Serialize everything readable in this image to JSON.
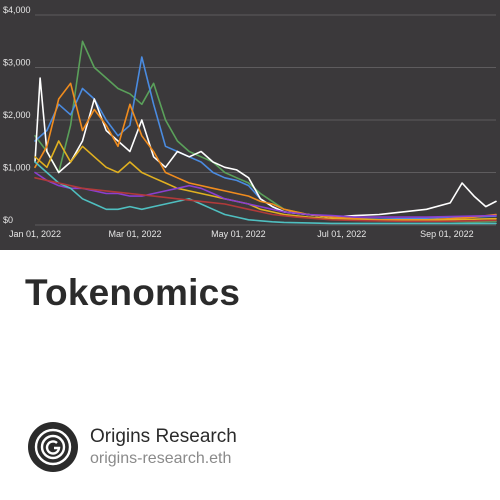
{
  "colors": {
    "chart_background": "#3b393b",
    "gridline": "#6b696b",
    "tick_text": "#e6e6e6",
    "title_text": "#2b2b2b",
    "handle_text": "#8a8a8a"
  },
  "post": {
    "title": "Tokenomics"
  },
  "author": {
    "name": "Origins Research",
    "handle": "origins-research.eth",
    "logo_icon": "origins-logo-icon"
  },
  "chart_data": {
    "type": "line",
    "title": "",
    "xlabel": "",
    "ylabel": "",
    "ylim": [
      0,
      4000
    ],
    "xlim": [
      "2022-01-01",
      "2022-09-30"
    ],
    "grid": true,
    "legend": "none",
    "y_ticks": [
      {
        "value": 0,
        "label": "$0"
      },
      {
        "value": 1000,
        "label": "$1,000"
      },
      {
        "value": 2000,
        "label": "$2,000"
      },
      {
        "value": 3000,
        "label": "$3,000"
      },
      {
        "value": 4000,
        "label": "$4,000"
      }
    ],
    "x_ticks": [
      {
        "date": "2022-01-01",
        "label": "Jan 01, 2022"
      },
      {
        "date": "2022-03-01",
        "label": "Mar 01, 2022"
      },
      {
        "date": "2022-05-01",
        "label": "May 01, 2022"
      },
      {
        "date": "2022-07-01",
        "label": "Jul 01, 2022"
      },
      {
        "date": "2022-09-01",
        "label": "Sep 01, 2022"
      }
    ],
    "series": [
      {
        "color": "#5aa05a",
        "x": [
          "2022-01-01",
          "2022-01-08",
          "2022-01-15",
          "2022-01-22",
          "2022-01-29",
          "2022-02-05",
          "2022-02-12",
          "2022-02-19",
          "2022-02-26",
          "2022-03-05",
          "2022-03-12",
          "2022-03-19",
          "2022-03-26",
          "2022-04-02",
          "2022-04-09",
          "2022-04-16",
          "2022-04-23",
          "2022-04-30",
          "2022-05-07",
          "2022-05-14",
          "2022-05-21",
          "2022-05-28",
          "2022-06-11",
          "2022-06-25",
          "2022-07-09",
          "2022-07-23",
          "2022-08-06",
          "2022-08-20",
          "2022-09-03",
          "2022-09-17",
          "2022-09-30"
        ],
        "y": [
          1700,
          1400,
          1000,
          1900,
          3500,
          3000,
          2800,
          2600,
          2500,
          2300,
          2700,
          2000,
          1600,
          1400,
          1300,
          1200,
          1000,
          900,
          800,
          600,
          450,
          300,
          200,
          150,
          100,
          80,
          80,
          70,
          70,
          60,
          70
        ]
      },
      {
        "color": "#4a8be0",
        "x": [
          "2022-01-01",
          "2022-01-08",
          "2022-01-15",
          "2022-01-22",
          "2022-01-29",
          "2022-02-05",
          "2022-02-12",
          "2022-02-19",
          "2022-02-26",
          "2022-03-05",
          "2022-03-12",
          "2022-03-19",
          "2022-03-26",
          "2022-04-02",
          "2022-04-09",
          "2022-04-16",
          "2022-04-23",
          "2022-04-30",
          "2022-05-07",
          "2022-05-14",
          "2022-05-21",
          "2022-05-28",
          "2022-06-11",
          "2022-06-25",
          "2022-07-09",
          "2022-07-23",
          "2022-08-06",
          "2022-08-20",
          "2022-09-03",
          "2022-09-17",
          "2022-09-30"
        ],
        "y": [
          1600,
          1800,
          2300,
          2100,
          2600,
          2400,
          2000,
          1700,
          1900,
          3200,
          2300,
          1500,
          1400,
          1300,
          1200,
          1000,
          900,
          850,
          750,
          500,
          350,
          250,
          200,
          150,
          120,
          110,
          120,
          130,
          150,
          150,
          170
        ]
      },
      {
        "color": "#ffffff",
        "x": [
          "2022-01-01",
          "2022-01-04",
          "2022-01-08",
          "2022-01-15",
          "2022-01-22",
          "2022-01-29",
          "2022-02-05",
          "2022-02-12",
          "2022-02-19",
          "2022-02-26",
          "2022-03-05",
          "2022-03-12",
          "2022-03-19",
          "2022-03-26",
          "2022-04-02",
          "2022-04-09",
          "2022-04-16",
          "2022-04-23",
          "2022-04-30",
          "2022-05-07",
          "2022-05-14",
          "2022-05-21",
          "2022-05-28",
          "2022-06-11",
          "2022-06-25",
          "2022-07-09",
          "2022-07-23",
          "2022-08-06",
          "2022-08-20",
          "2022-09-03",
          "2022-09-10",
          "2022-09-17",
          "2022-09-24",
          "2022-09-30"
        ],
        "y": [
          1200,
          2800,
          1400,
          1000,
          1200,
          1600,
          2400,
          1800,
          1600,
          1400,
          2000,
          1300,
          1100,
          1400,
          1300,
          1400,
          1200,
          1100,
          1050,
          900,
          500,
          350,
          250,
          200,
          150,
          180,
          200,
          250,
          300,
          420,
          800,
          550,
          350,
          450
        ]
      },
      {
        "color": "#f08c1e",
        "x": [
          "2022-01-01",
          "2022-01-08",
          "2022-01-15",
          "2022-01-22",
          "2022-01-29",
          "2022-02-05",
          "2022-02-12",
          "2022-02-19",
          "2022-02-26",
          "2022-03-05",
          "2022-03-12",
          "2022-03-19",
          "2022-03-26",
          "2022-04-02",
          "2022-04-09",
          "2022-04-16",
          "2022-04-23",
          "2022-04-30",
          "2022-05-07",
          "2022-05-14",
          "2022-05-21",
          "2022-05-28",
          "2022-06-11",
          "2022-06-25",
          "2022-07-09",
          "2022-07-23",
          "2022-08-06",
          "2022-08-20",
          "2022-09-03",
          "2022-09-17",
          "2022-09-30"
        ],
        "y": [
          1100,
          1500,
          2400,
          2700,
          1800,
          2200,
          1900,
          1500,
          2300,
          1700,
          1400,
          1000,
          900,
          800,
          750,
          700,
          650,
          600,
          550,
          450,
          400,
          300,
          200,
          150,
          120,
          100,
          100,
          100,
          120,
          150,
          200
        ]
      },
      {
        "color": "#e0b020",
        "x": [
          "2022-01-01",
          "2022-01-08",
          "2022-01-15",
          "2022-01-22",
          "2022-01-29",
          "2022-02-05",
          "2022-02-12",
          "2022-02-19",
          "2022-02-26",
          "2022-03-05",
          "2022-03-12",
          "2022-03-19",
          "2022-03-26",
          "2022-04-02",
          "2022-04-09",
          "2022-04-16",
          "2022-04-23",
          "2022-04-30",
          "2022-05-07",
          "2022-05-14",
          "2022-05-21",
          "2022-05-28",
          "2022-06-11",
          "2022-06-25",
          "2022-07-09",
          "2022-07-23",
          "2022-08-06",
          "2022-08-20",
          "2022-09-03",
          "2022-09-17",
          "2022-09-30"
        ],
        "y": [
          1300,
          1100,
          1600,
          1200,
          1500,
          1300,
          1100,
          1000,
          1200,
          1000,
          900,
          800,
          700,
          650,
          600,
          550,
          500,
          450,
          400,
          300,
          250,
          200,
          150,
          120,
          100,
          90,
          90,
          90,
          100,
          110,
          120
        ]
      },
      {
        "color": "#8a3fd0",
        "x": [
          "2022-01-01",
          "2022-01-08",
          "2022-01-15",
          "2022-01-22",
          "2022-01-29",
          "2022-02-05",
          "2022-02-12",
          "2022-02-19",
          "2022-02-26",
          "2022-03-05",
          "2022-03-12",
          "2022-03-19",
          "2022-03-26",
          "2022-04-02",
          "2022-04-09",
          "2022-04-16",
          "2022-04-23",
          "2022-04-30",
          "2022-05-07",
          "2022-05-14",
          "2022-05-21",
          "2022-05-28",
          "2022-06-11",
          "2022-06-25",
          "2022-07-09",
          "2022-07-23",
          "2022-08-06",
          "2022-08-20",
          "2022-09-03",
          "2022-09-17",
          "2022-09-30"
        ],
        "y": [
          1000,
          850,
          750,
          700,
          700,
          650,
          600,
          600,
          550,
          550,
          600,
          650,
          700,
          750,
          700,
          600,
          500,
          450,
          400,
          350,
          300,
          250,
          200,
          180,
          150,
          150,
          150,
          150,
          160,
          170,
          180
        ]
      },
      {
        "color": "#4fbfc0",
        "x": [
          "2022-01-01",
          "2022-01-08",
          "2022-01-15",
          "2022-01-22",
          "2022-01-29",
          "2022-02-05",
          "2022-02-12",
          "2022-02-19",
          "2022-02-26",
          "2022-03-05",
          "2022-03-12",
          "2022-03-19",
          "2022-03-26",
          "2022-04-02",
          "2022-04-09",
          "2022-04-16",
          "2022-04-23",
          "2022-04-30",
          "2022-05-07",
          "2022-05-14",
          "2022-05-21",
          "2022-05-28",
          "2022-06-11",
          "2022-06-25",
          "2022-07-09",
          "2022-07-23",
          "2022-08-06",
          "2022-08-20",
          "2022-09-03",
          "2022-09-17",
          "2022-09-30"
        ],
        "y": [
          1200,
          1000,
          800,
          700,
          500,
          400,
          300,
          300,
          350,
          300,
          350,
          400,
          450,
          500,
          400,
          300,
          200,
          150,
          100,
          80,
          60,
          50,
          40,
          30,
          30,
          30,
          30,
          30,
          30,
          30,
          30
        ]
      },
      {
        "color": "#b03a3a",
        "x": [
          "2022-01-01",
          "2022-01-15",
          "2022-01-29",
          "2022-02-12",
          "2022-02-26",
          "2022-03-12",
          "2022-03-26",
          "2022-04-09",
          "2022-04-23",
          "2022-05-07",
          "2022-05-21",
          "2022-06-04",
          "2022-06-25",
          "2022-07-16",
          "2022-08-06",
          "2022-08-27",
          "2022-09-17",
          "2022-09-30"
        ],
        "y": [
          900,
          800,
          700,
          650,
          600,
          550,
          500,
          450,
          400,
          300,
          200,
          150,
          100,
          80,
          70,
          70,
          80,
          90
        ]
      }
    ]
  }
}
